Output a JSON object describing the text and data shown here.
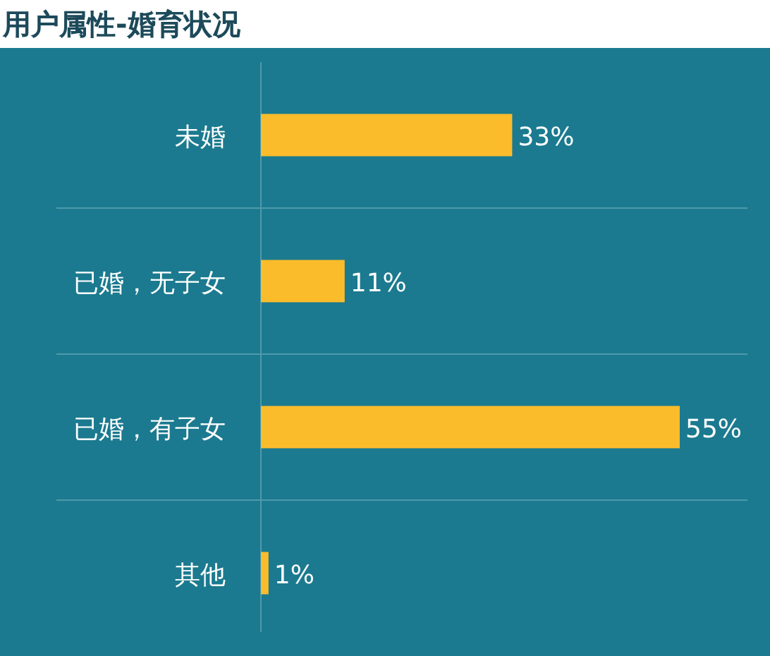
{
  "chart_data": {
    "type": "bar",
    "orientation": "horizontal",
    "title": "用户属性-婚育状况",
    "categories": [
      "未婚",
      "已婚，无子女",
      "已婚，有子女",
      "其他"
    ],
    "values": [
      33,
      11,
      55,
      1
    ],
    "value_labels": [
      "33%",
      "11%",
      "55%",
      "1%"
    ],
    "color": "#fbbc2c",
    "grid": "y"
  }
}
